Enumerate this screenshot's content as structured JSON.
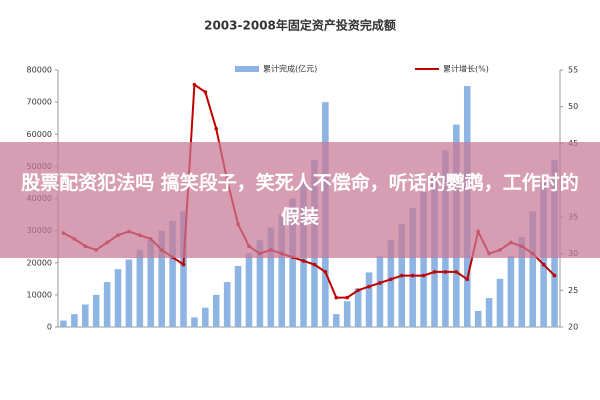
{
  "chart_data": {
    "type": "bar-line",
    "title": "2003-2008年固定资产投资完成额",
    "categories": [
      null,
      null,
      null,
      null,
      null,
      null,
      null,
      null,
      null,
      null,
      null,
      null,
      null,
      null,
      null,
      null,
      null,
      null,
      null,
      null,
      null,
      null,
      null,
      null,
      null,
      null,
      null,
      null,
      null,
      null,
      null,
      null,
      null,
      null,
      null,
      null,
      null,
      null,
      null,
      null,
      null,
      null,
      null,
      null,
      null,
      null
    ],
    "series": [
      {
        "name": "累计完成(亿元)",
        "type": "bar",
        "color": "#8db4e2",
        "values": [
          2000,
          4000,
          7000,
          10000,
          14000,
          18000,
          21000,
          24000,
          27000,
          30000,
          33000,
          36000,
          3000,
          6000,
          10000,
          14000,
          19000,
          23000,
          27000,
          31000,
          35000,
          40000,
          45000,
          52000,
          70000,
          4000,
          8000,
          12000,
          17000,
          22000,
          27000,
          32000,
          37000,
          42000,
          48000,
          55000,
          63000,
          75000,
          5000,
          9000,
          15000,
          22000,
          28000,
          36000,
          45000,
          52000
        ]
      },
      {
        "name": "累计增长(%)",
        "type": "line",
        "axis": "y2",
        "color": "#c00000",
        "values": [
          32.8,
          32,
          31,
          30.5,
          31.5,
          32.5,
          33,
          32.5,
          32,
          30.5,
          29.5,
          28.5,
          53,
          52,
          47,
          40,
          34,
          31,
          30,
          30.5,
          30,
          29.5,
          29,
          28.5,
          27.5,
          24,
          24,
          25,
          25.5,
          26,
          26.5,
          27,
          27,
          27,
          27.5,
          27.5,
          27.5,
          26.5,
          33,
          30,
          30.5,
          31.5,
          31,
          30,
          28.5,
          27
        ]
      }
    ],
    "ylim": [
      0,
      80000
    ],
    "yticks": [
      0,
      10000,
      20000,
      30000,
      40000,
      50000,
      60000,
      70000,
      80000
    ],
    "y2lim": [
      20,
      55
    ],
    "y2ticks": [
      20,
      25,
      30,
      35,
      40,
      45,
      50,
      55
    ]
  },
  "banner": {
    "text": "股票配资犯法吗 搞笑段子，笑死人不偿命，听话的鹦鹉，工作时的假装"
  }
}
